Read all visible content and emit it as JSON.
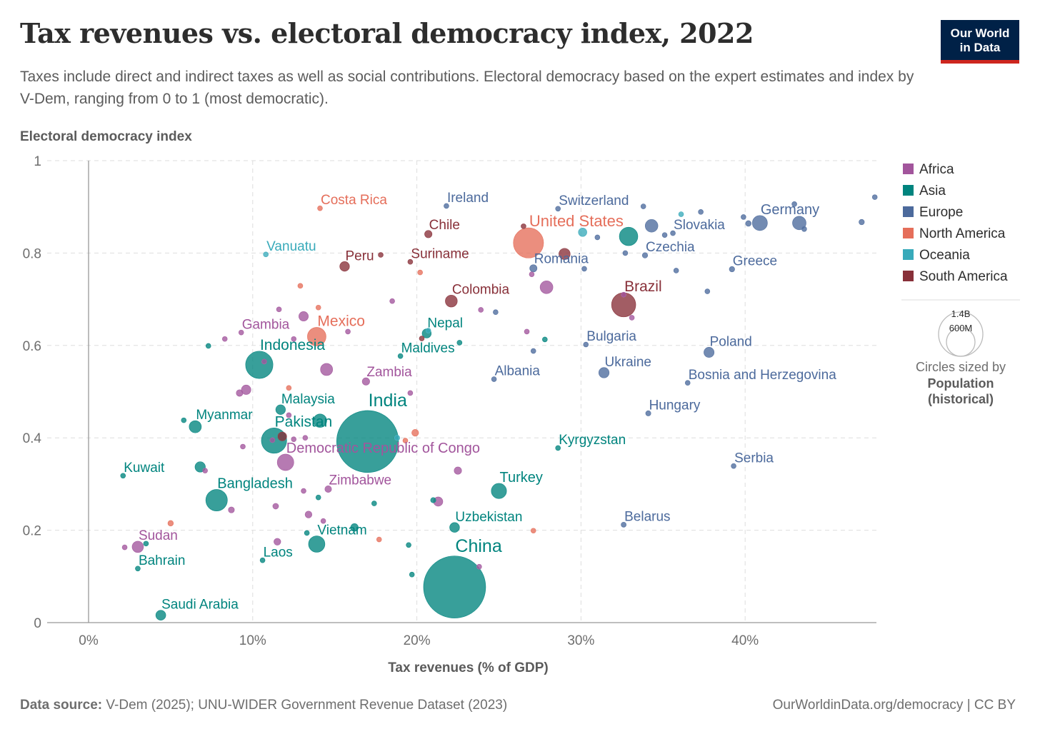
{
  "header": {
    "title": "Tax revenues vs. electoral democracy index, 2022",
    "subtitle": "Taxes include direct and indirect taxes as well as social contributions. Electoral democracy based on the expert estimates and index by V-Dem, ranging from 0 to 1 (most democratic).",
    "logo_line1": "Our World",
    "logo_line2": "in Data"
  },
  "footer": {
    "source_label": "Data source:",
    "source_text": "V-Dem (2025); UNU-WIDER Government Revenue Dataset (2023)",
    "link": "OurWorldinData.org/democracy | CC BY"
  },
  "chart_data": {
    "type": "scatter",
    "title": "Tax revenues vs. electoral democracy index, 2022",
    "xlabel": "Tax revenues (% of GDP)",
    "ylabel": "Electoral democracy index",
    "xlim": [
      0,
      48
    ],
    "ylim": [
      0,
      1
    ],
    "x_ticks": [
      0,
      10,
      20,
      30,
      40
    ],
    "x_tick_labels": [
      "0%",
      "10%",
      "20%",
      "30%",
      "40%"
    ],
    "y_ticks": [
      0,
      0.2,
      0.4,
      0.6,
      0.8,
      1
    ],
    "y_tick_labels": [
      "0",
      "0.2",
      "0.4",
      "0.6",
      "0.8",
      "1"
    ],
    "grid": true,
    "legend_position": "right",
    "legend": [
      {
        "name": "Africa",
        "color": "#a2559c"
      },
      {
        "name": "Asia",
        "color": "#00847e"
      },
      {
        "name": "Europe",
        "color": "#4c6a9c"
      },
      {
        "name": "North America",
        "color": "#e56e5a"
      },
      {
        "name": "Oceania",
        "color": "#38aaba"
      },
      {
        "name": "South America",
        "color": "#883039"
      }
    ],
    "size_legend": {
      "large_label": "1.4B",
      "small_label": "600M",
      "caption_line1": "Circles sized by",
      "caption_line2": "Population",
      "caption_line3": "(historical)"
    },
    "points": [
      {
        "label": "Costa Rica",
        "region": "North America",
        "x": 14.1,
        "y": 0.897,
        "pop": 5.2
      },
      {
        "label": "Ireland",
        "region": "Europe",
        "x": 21.8,
        "y": 0.902,
        "pop": 5.1
      },
      {
        "label": "Switzerland",
        "region": "Europe",
        "x": 28.6,
        "y": 0.896,
        "pop": 8.8
      },
      {
        "label": "Chile",
        "region": "South America",
        "x": 20.7,
        "y": 0.841,
        "pop": 19.6
      },
      {
        "label": "United States",
        "region": "North America",
        "x": 26.8,
        "y": 0.822,
        "pop": 335
      },
      {
        "label": "Germany",
        "region": "Europe",
        "x": 40.9,
        "y": 0.865,
        "pop": 83
      },
      {
        "label": "Slovakia",
        "region": "Europe",
        "x": 35.6,
        "y": 0.843,
        "pop": 5.4
      },
      {
        "label": "Czechia",
        "region": "Europe",
        "x": 33.9,
        "y": 0.795,
        "pop": 10.5
      },
      {
        "label": "Vanuatu",
        "region": "Oceania",
        "x": 10.8,
        "y": 0.797,
        "pop": 0.3
      },
      {
        "label": "Peru",
        "region": "South America",
        "x": 15.6,
        "y": 0.771,
        "pop": 34
      },
      {
        "label": "Suriname",
        "region": "South America",
        "x": 19.6,
        "y": 0.781,
        "pop": 0.6
      },
      {
        "label": "Romania",
        "region": "Europe",
        "x": 27.1,
        "y": 0.767,
        "pop": 19
      },
      {
        "label": "Greece",
        "region": "Europe",
        "x": 39.2,
        "y": 0.765,
        "pop": 10.4
      },
      {
        "label": "Colombia",
        "region": "South America",
        "x": 22.1,
        "y": 0.696,
        "pop": 52
      },
      {
        "label": "Brazil",
        "region": "South America",
        "x": 32.6,
        "y": 0.688,
        "pop": 215
      },
      {
        "label": "Gambia",
        "region": "Africa",
        "x": 9.3,
        "y": 0.628,
        "pop": 2.7
      },
      {
        "label": "Mexico",
        "region": "North America",
        "x": 13.9,
        "y": 0.619,
        "pop": 127
      },
      {
        "label": "Nepal",
        "region": "Asia",
        "x": 20.6,
        "y": 0.626,
        "pop": 30
      },
      {
        "label": "Bulgaria",
        "region": "Europe",
        "x": 30.3,
        "y": 0.602,
        "pop": 6.8
      },
      {
        "label": "Poland",
        "region": "Europe",
        "x": 37.8,
        "y": 0.585,
        "pop": 38
      },
      {
        "label": "Indonesia",
        "region": "Asia",
        "x": 10.4,
        "y": 0.558,
        "pop": 275
      },
      {
        "label": "Maldives",
        "region": "Asia",
        "x": 19.0,
        "y": 0.577,
        "pop": 0.5
      },
      {
        "label": "Zambia",
        "region": "Africa",
        "x": 16.9,
        "y": 0.522,
        "pop": 20
      },
      {
        "label": "Albania",
        "region": "Europe",
        "x": 24.7,
        "y": 0.527,
        "pop": 2.8
      },
      {
        "label": "Ukraine",
        "region": "Europe",
        "x": 31.4,
        "y": 0.541,
        "pop": 39
      },
      {
        "label": "Bosnia and Herzegovina",
        "region": "Europe",
        "x": 36.5,
        "y": 0.519,
        "pop": 3.2
      },
      {
        "label": "Malaysia",
        "region": "Asia",
        "x": 11.7,
        "y": 0.461,
        "pop": 34
      },
      {
        "label": "Myanmar",
        "region": "Asia",
        "x": 6.5,
        "y": 0.424,
        "pop": 54
      },
      {
        "label": "Hungary",
        "region": "Europe",
        "x": 34.1,
        "y": 0.453,
        "pop": 9.7
      },
      {
        "label": "India",
        "region": "Asia",
        "x": 17.0,
        "y": 0.392,
        "pop": 1417
      },
      {
        "label": "Pakistan",
        "region": "Asia",
        "x": 11.3,
        "y": 0.394,
        "pop": 236
      },
      {
        "label": "Kyrgyzstan",
        "region": "Asia",
        "x": 28.6,
        "y": 0.378,
        "pop": 6.9
      },
      {
        "label": "Democratic Republic of Congo",
        "region": "Africa",
        "x": 12.0,
        "y": 0.347,
        "pop": 100
      },
      {
        "label": "Serbia",
        "region": "Europe",
        "x": 39.3,
        "y": 0.339,
        "pop": 6.7
      },
      {
        "label": "Kuwait",
        "region": "Asia",
        "x": 2.1,
        "y": 0.318,
        "pop": 4.3
      },
      {
        "label": "Zimbabwe",
        "region": "Africa",
        "x": 14.6,
        "y": 0.289,
        "pop": 16
      },
      {
        "label": "Turkey",
        "region": "Asia",
        "x": 25.0,
        "y": 0.285,
        "pop": 85
      },
      {
        "label": "Bangladesh",
        "region": "Asia",
        "x": 7.8,
        "y": 0.265,
        "pop": 171
      },
      {
        "label": "Belarus",
        "region": "Europe",
        "x": 32.6,
        "y": 0.212,
        "pop": 9.2
      },
      {
        "label": "Uzbekistan",
        "region": "Asia",
        "x": 22.3,
        "y": 0.206,
        "pop": 35
      },
      {
        "label": "Vietnam",
        "region": "Asia",
        "x": 13.9,
        "y": 0.17,
        "pop": 98
      },
      {
        "label": "Sudan",
        "region": "Africa",
        "x": 3.0,
        "y": 0.164,
        "pop": 47
      },
      {
        "label": "Laos",
        "region": "Asia",
        "x": 10.6,
        "y": 0.135,
        "pop": 7.5
      },
      {
        "label": "Bahrain",
        "region": "Asia",
        "x": 3.0,
        "y": 0.117,
        "pop": 1.5
      },
      {
        "label": "China",
        "region": "Asia",
        "x": 22.3,
        "y": 0.077,
        "pop": 1425
      },
      {
        "label": "Saudi Arabia",
        "region": "Asia",
        "x": 4.4,
        "y": 0.016,
        "pop": 36
      },
      {
        "label": "",
        "region": "Europe",
        "x": 47.1,
        "y": 0.867,
        "pop": 10.5
      },
      {
        "label": "",
        "region": "Europe",
        "x": 43.3,
        "y": 0.865,
        "pop": 67
      },
      {
        "label": "",
        "region": "Europe",
        "x": 47.9,
        "y": 0.921,
        "pop": 5.9
      },
      {
        "label": "",
        "region": "Europe",
        "x": 43.0,
        "y": 0.906,
        "pop": 5.4
      },
      {
        "label": "",
        "region": "Europe",
        "x": 43.6,
        "y": 0.852,
        "pop": 9.0
      },
      {
        "label": "",
        "region": "Europe",
        "x": 40.2,
        "y": 0.864,
        "pop": 11.6
      },
      {
        "label": "",
        "region": "Europe",
        "x": 39.9,
        "y": 0.878,
        "pop": 5.5
      },
      {
        "label": "",
        "region": "Europe",
        "x": 37.3,
        "y": 0.889,
        "pop": 5.6
      },
      {
        "label": "",
        "region": "Europe",
        "x": 34.3,
        "y": 0.859,
        "pop": 59
      },
      {
        "label": "",
        "region": "Europe",
        "x": 35.1,
        "y": 0.839,
        "pop": 2.1
      },
      {
        "label": "",
        "region": "Europe",
        "x": 33.8,
        "y": 0.901,
        "pop": 0.6
      },
      {
        "label": "",
        "region": "Europe",
        "x": 31.0,
        "y": 0.834,
        "pop": 1.3
      },
      {
        "label": "",
        "region": "Europe",
        "x": 32.7,
        "y": 0.8,
        "pop": 2.8
      },
      {
        "label": "",
        "region": "Europe",
        "x": 35.8,
        "y": 0.762,
        "pop": 4.0
      },
      {
        "label": "",
        "region": "Europe",
        "x": 37.7,
        "y": 0.717,
        "pop": 2.1
      },
      {
        "label": "",
        "region": "Europe",
        "x": 30.2,
        "y": 0.766,
        "pop": 3.9
      },
      {
        "label": "",
        "region": "Europe",
        "x": 27.1,
        "y": 0.588,
        "pop": 2.4
      },
      {
        "label": "",
        "region": "Europe",
        "x": 24.8,
        "y": 0.672,
        "pop": 3.7
      },
      {
        "label": "",
        "region": "Oceania",
        "x": 30.1,
        "y": 0.845,
        "pop": 26
      },
      {
        "label": "",
        "region": "Oceania",
        "x": 36.1,
        "y": 0.884,
        "pop": 5.1
      },
      {
        "label": "",
        "region": "Oceania",
        "x": 20.7,
        "y": 0.632,
        "pop": 0.9
      },
      {
        "label": "",
        "region": "Oceania",
        "x": 18.8,
        "y": 0.4,
        "pop": 10
      },
      {
        "label": "",
        "region": "Asia",
        "x": 32.9,
        "y": 0.836,
        "pop": 125
      },
      {
        "label": "",
        "region": "Asia",
        "x": 7.3,
        "y": 0.599,
        "pop": 0.4
      },
      {
        "label": "",
        "region": "Asia",
        "x": 5.8,
        "y": 0.438,
        "pop": 0.8
      },
      {
        "label": "",
        "region": "Asia",
        "x": 6.8,
        "y": 0.337,
        "pop": 39
      },
      {
        "label": "",
        "region": "Asia",
        "x": 22.6,
        "y": 0.606,
        "pop": 9.0
      },
      {
        "label": "",
        "region": "Asia",
        "x": 27.8,
        "y": 0.613,
        "pop": 2.8
      },
      {
        "label": "",
        "region": "Asia",
        "x": 14.1,
        "y": 0.437,
        "pop": 66
      },
      {
        "label": "",
        "region": "Asia",
        "x": 21.0,
        "y": 0.265,
        "pop": 10
      },
      {
        "label": "",
        "region": "Asia",
        "x": 17.4,
        "y": 0.258,
        "pop": 0.8
      },
      {
        "label": "",
        "region": "Asia",
        "x": 14.0,
        "y": 0.271,
        "pop": 0.3
      },
      {
        "label": "",
        "region": "Asia",
        "x": 13.3,
        "y": 0.194,
        "pop": 5.0
      },
      {
        "label": "",
        "region": "Asia",
        "x": 16.2,
        "y": 0.206,
        "pop": 21
      },
      {
        "label": "",
        "region": "Asia",
        "x": 19.5,
        "y": 0.168,
        "pop": 0.4
      },
      {
        "label": "",
        "region": "Asia",
        "x": 19.7,
        "y": 0.104,
        "pop": 3.0
      },
      {
        "label": "",
        "region": "Asia",
        "x": 3.5,
        "y": 0.171,
        "pop": 2.7
      },
      {
        "label": "",
        "region": "Africa",
        "x": 8.3,
        "y": 0.614,
        "pop": 0.6
      },
      {
        "label": "",
        "region": "Africa",
        "x": 9.6,
        "y": 0.504,
        "pop": 33
      },
      {
        "label": "",
        "region": "Africa",
        "x": 9.2,
        "y": 0.497,
        "pop": 16
      },
      {
        "label": "",
        "region": "Africa",
        "x": 10.7,
        "y": 0.565,
        "pop": 1.7
      },
      {
        "label": "",
        "region": "Africa",
        "x": 14.5,
        "y": 0.548,
        "pop": 54
      },
      {
        "label": "",
        "region": "Africa",
        "x": 11.6,
        "y": 0.678,
        "pop": 2.1
      },
      {
        "label": "",
        "region": "Africa",
        "x": 13.1,
        "y": 0.663,
        "pop": 33
      },
      {
        "label": "",
        "region": "Africa",
        "x": 12.5,
        "y": 0.614,
        "pop": 6.8
      },
      {
        "label": "",
        "region": "Africa",
        "x": 15.8,
        "y": 0.63,
        "pop": 2.6
      },
      {
        "label": "",
        "region": "Africa",
        "x": 18.5,
        "y": 0.696,
        "pop": 1.3
      },
      {
        "label": "",
        "region": "Africa",
        "x": 23.9,
        "y": 0.677,
        "pop": 2.3
      },
      {
        "label": "",
        "region": "Africa",
        "x": 27.0,
        "y": 0.754,
        "pop": 0.6
      },
      {
        "label": "",
        "region": "Africa",
        "x": 27.9,
        "y": 0.726,
        "pop": 60
      },
      {
        "label": "",
        "region": "Africa",
        "x": 32.6,
        "y": 0.71,
        "pop": 1.3
      },
      {
        "label": "",
        "region": "Africa",
        "x": 33.1,
        "y": 0.66,
        "pop": 0.1
      },
      {
        "label": "",
        "region": "Africa",
        "x": 26.7,
        "y": 0.63,
        "pop": 1.1
      },
      {
        "label": "",
        "region": "Africa",
        "x": 19.6,
        "y": 0.497,
        "pop": 0.8
      },
      {
        "label": "",
        "region": "Africa",
        "x": 12.2,
        "y": 0.449,
        "pop": 8.8
      },
      {
        "label": "",
        "region": "Africa",
        "x": 12.5,
        "y": 0.397,
        "pop": 5.0
      },
      {
        "label": "",
        "region": "Africa",
        "x": 13.2,
        "y": 0.4,
        "pop": 5.2
      },
      {
        "label": "",
        "region": "Africa",
        "x": 9.4,
        "y": 0.381,
        "pop": 4.8
      },
      {
        "label": "",
        "region": "Africa",
        "x": 7.1,
        "y": 0.329,
        "pop": 6.8
      },
      {
        "label": "",
        "region": "Africa",
        "x": 8.7,
        "y": 0.244,
        "pop": 13
      },
      {
        "label": "",
        "region": "Africa",
        "x": 11.4,
        "y": 0.252,
        "pop": 12
      },
      {
        "label": "",
        "region": "Africa",
        "x": 13.1,
        "y": 0.285,
        "pop": 4.9
      },
      {
        "label": "",
        "region": "Africa",
        "x": 13.4,
        "y": 0.234,
        "pop": 17
      },
      {
        "label": "",
        "region": "Africa",
        "x": 14.3,
        "y": 0.22,
        "pop": 2.5
      },
      {
        "label": "",
        "region": "Africa",
        "x": 11.5,
        "y": 0.175,
        "pop": 17
      },
      {
        "label": "",
        "region": "Africa",
        "x": 21.3,
        "y": 0.262,
        "pop": 31
      },
      {
        "label": "",
        "region": "Africa",
        "x": 22.5,
        "y": 0.329,
        "pop": 20
      },
      {
        "label": "",
        "region": "Africa",
        "x": 23.8,
        "y": 0.121,
        "pop": 5.0
      },
      {
        "label": "",
        "region": "Africa",
        "x": 2.2,
        "y": 0.163,
        "pop": 4.4
      },
      {
        "label": "",
        "region": "Africa",
        "x": 11.2,
        "y": 0.395,
        "pop": 1.1
      },
      {
        "label": "",
        "region": "North America",
        "x": 12.9,
        "y": 0.729,
        "pop": 0.4
      },
      {
        "label": "",
        "region": "North America",
        "x": 14.0,
        "y": 0.682,
        "pop": 3.0
      },
      {
        "label": "",
        "region": "North America",
        "x": 20.2,
        "y": 0.758,
        "pop": 2.8
      },
      {
        "label": "",
        "region": "North America",
        "x": 12.2,
        "y": 0.508,
        "pop": 6.3
      },
      {
        "label": "",
        "region": "North America",
        "x": 19.9,
        "y": 0.411,
        "pop": 17
      },
      {
        "label": "",
        "region": "North America",
        "x": 19.3,
        "y": 0.394,
        "pop": 4.4
      },
      {
        "label": "",
        "region": "North America",
        "x": 17.7,
        "y": 0.18,
        "pop": 0.3
      },
      {
        "label": "",
        "region": "North America",
        "x": 27.1,
        "y": 0.199,
        "pop": 0.1
      },
      {
        "label": "",
        "region": "North America",
        "x": 5.0,
        "y": 0.215,
        "pop": 11
      },
      {
        "label": "",
        "region": "South America",
        "x": 26.5,
        "y": 0.858,
        "pop": 3.4
      },
      {
        "label": "",
        "region": "South America",
        "x": 29.0,
        "y": 0.798,
        "pop": 46
      },
      {
        "label": "",
        "region": "South America",
        "x": 20.3,
        "y": 0.615,
        "pop": 6.8
      },
      {
        "label": "",
        "region": "South America",
        "x": 17.8,
        "y": 0.796,
        "pop": 0.8
      },
      {
        "label": "",
        "region": "South America",
        "x": 11.8,
        "y": 0.403,
        "pop": 28
      }
    ]
  }
}
